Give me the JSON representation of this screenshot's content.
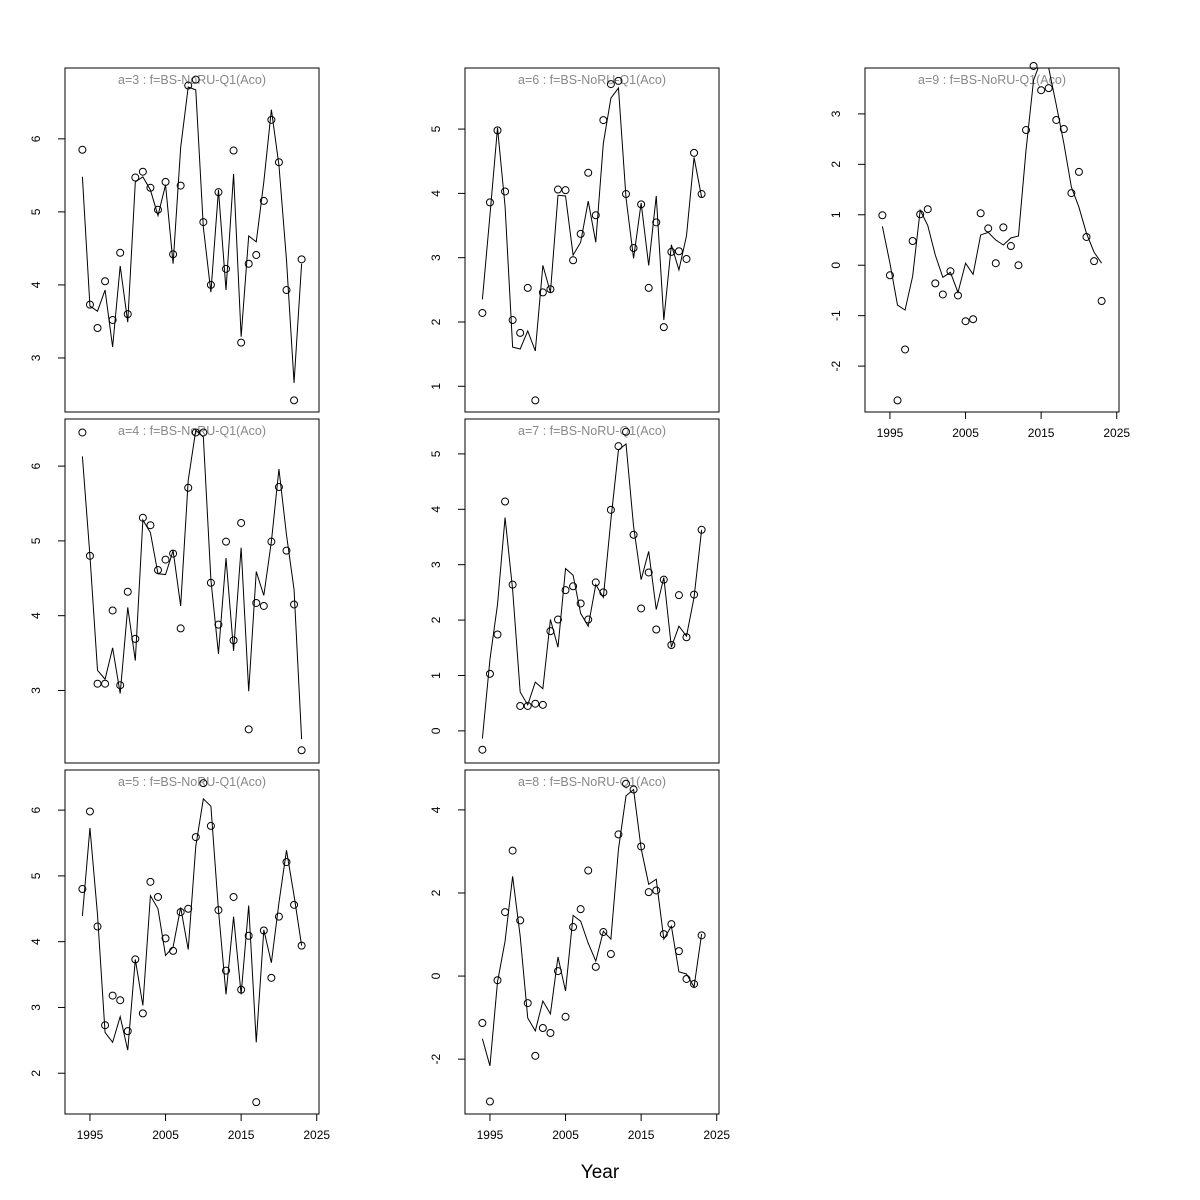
{
  "xlabel": "Year",
  "chart_data": [
    {
      "type": "line",
      "title": "a=3  :  f=BS-NoRU-Q1(Aco)",
      "x": [
        1994,
        1995,
        1996,
        1997,
        1998,
        1999,
        2000,
        2001,
        2002,
        2003,
        2004,
        2005,
        2006,
        2007,
        2008,
        2009,
        2010,
        2011,
        2012,
        2013,
        2014,
        2015,
        2016,
        2017,
        2018,
        2019,
        2020,
        2021,
        2022,
        2023
      ],
      "series": [
        {
          "marker": "circle",
          "values": [
            5.85,
            3.73,
            3.41,
            4.05,
            3.52,
            4.44,
            3.6,
            5.47,
            5.55,
            5.33,
            5.03,
            5.41,
            4.42,
            5.36,
            6.73,
            6.81,
            4.86,
            4.0,
            5.27,
            4.22,
            5.84,
            3.21,
            4.29,
            4.41,
            5.15,
            6.26,
            5.68,
            3.93,
            2.42,
            4.35
          ]
        },
        {
          "marker": "line",
          "values": [
            5.48,
            3.71,
            3.64,
            3.93,
            3.15,
            4.26,
            3.49,
            5.41,
            5.48,
            5.3,
            4.95,
            5.37,
            4.29,
            5.88,
            6.71,
            6.67,
            4.79,
            3.9,
            5.3,
            3.93,
            5.52,
            3.29,
            4.67,
            4.59,
            5.41,
            6.4,
            5.64,
            4.34,
            2.66,
            4.29
          ]
        }
      ],
      "xlim": [
        1991.7,
        2025.3
      ],
      "ylim": [
        2.26,
        6.97
      ],
      "yticks": [
        3,
        4,
        5,
        6
      ]
    },
    {
      "type": "line",
      "title": "a=4  :  f=BS-NoRU-Q1(Aco)",
      "x": [
        1994,
        1995,
        1996,
        1997,
        1998,
        1999,
        2000,
        2001,
        2002,
        2003,
        2004,
        2005,
        2006,
        2007,
        2008,
        2009,
        2010,
        2011,
        2012,
        2013,
        2014,
        2015,
        2016,
        2017,
        2018,
        2019,
        2020,
        2021,
        2022,
        2023
      ],
      "series": [
        {
          "marker": "circle",
          "values": [
            6.45,
            4.8,
            3.09,
            3.09,
            4.07,
            3.07,
            4.32,
            3.69,
            5.31,
            5.21,
            4.61,
            4.75,
            4.83,
            3.83,
            5.71,
            6.45,
            6.45,
            4.44,
            3.88,
            4.99,
            3.67,
            5.24,
            2.48,
            4.17,
            4.13,
            4.99,
            5.72,
            4.87,
            4.15,
            2.2
          ]
        },
        {
          "marker": "line",
          "values": [
            6.13,
            4.8,
            3.27,
            3.15,
            3.57,
            2.96,
            4.11,
            3.4,
            5.28,
            5.11,
            4.56,
            4.55,
            4.87,
            4.13,
            5.81,
            6.48,
            6.39,
            4.48,
            3.49,
            4.77,
            3.53,
            4.91,
            2.99,
            4.59,
            4.27,
            4.99,
            5.96,
            5.08,
            4.35,
            2.35
          ]
        }
      ],
      "xlim": [
        1991.7,
        2025.3
      ],
      "ylim": [
        2.03,
        6.63
      ],
      "yticks": [
        3,
        4,
        5,
        6
      ]
    },
    {
      "type": "line",
      "title": "a=5  :  f=BS-NoRU-Q1(Aco)",
      "x": [
        1994,
        1995,
        1996,
        1997,
        1998,
        1999,
        2000,
        2001,
        2002,
        2003,
        2004,
        2005,
        2006,
        2007,
        2008,
        2009,
        2010,
        2011,
        2012,
        2013,
        2014,
        2015,
        2016,
        2017,
        2018,
        2019,
        2020,
        2021,
        2022,
        2023
      ],
      "series": [
        {
          "marker": "circle",
          "values": [
            4.8,
            5.98,
            4.23,
            2.73,
            3.18,
            3.11,
            2.64,
            3.73,
            2.91,
            4.91,
            4.68,
            4.05,
            3.86,
            4.45,
            4.5,
            5.59,
            6.41,
            5.76,
            4.48,
            3.56,
            4.68,
            3.27,
            4.09,
            1.56,
            4.17,
            3.45,
            4.38,
            5.21,
            4.56,
            3.94
          ]
        },
        {
          "marker": "line",
          "values": [
            4.39,
            5.73,
            4.41,
            2.62,
            2.47,
            2.86,
            2.35,
            3.73,
            3.03,
            4.7,
            4.5,
            3.79,
            3.92,
            4.52,
            3.88,
            5.45,
            6.17,
            6.06,
            4.48,
            3.2,
            4.38,
            3.2,
            4.55,
            2.47,
            4.18,
            3.68,
            4.59,
            5.39,
            4.7,
            3.94
          ]
        }
      ],
      "xlim": [
        1991.7,
        2025.3
      ],
      "ylim": [
        1.38,
        6.61
      ],
      "yticks": [
        2,
        3,
        4,
        5,
        6
      ],
      "xticks": [
        1995,
        2005,
        2015,
        2025
      ]
    },
    {
      "type": "line",
      "title": "a=6  :  f=BS-NoRU-Q1(Aco)",
      "x": [
        1994,
        1995,
        1996,
        1997,
        1998,
        1999,
        2000,
        2001,
        2002,
        2003,
        2004,
        2005,
        2006,
        2007,
        2008,
        2009,
        2010,
        2011,
        2012,
        2013,
        2014,
        2015,
        2016,
        2017,
        2018,
        2019,
        2020,
        2021,
        2022,
        2023
      ],
      "series": [
        {
          "marker": "circle",
          "values": [
            2.14,
            3.86,
            4.98,
            4.03,
            2.03,
            1.83,
            2.53,
            0.78,
            2.46,
            2.51,
            4.06,
            4.05,
            2.96,
            3.37,
            4.32,
            3.66,
            5.14,
            5.7,
            5.75,
            3.99,
            3.15,
            3.83,
            2.53,
            3.55,
            1.92,
            3.09,
            3.1,
            2.98,
            4.63,
            3.99
          ]
        },
        {
          "marker": "line",
          "values": [
            2.35,
            3.66,
            5.02,
            3.8,
            1.61,
            1.58,
            1.86,
            1.55,
            2.88,
            2.46,
            3.97,
            3.96,
            3.04,
            3.24,
            3.88,
            3.24,
            4.78,
            5.48,
            5.64,
            3.93,
            2.99,
            3.85,
            2.88,
            3.96,
            2.03,
            3.2,
            2.81,
            3.34,
            4.56,
            3.94
          ]
        }
      ],
      "xlim": [
        1991.7,
        2025.3
      ],
      "ylim": [
        0.6,
        5.95
      ],
      "yticks": [
        1,
        2,
        3,
        4,
        5
      ]
    },
    {
      "type": "line",
      "title": "a=7  :  f=BS-NoRU-Q1(Aco)",
      "x": [
        1994,
        1995,
        1996,
        1997,
        1998,
        1999,
        2000,
        2001,
        2002,
        2003,
        2004,
        2005,
        2006,
        2007,
        2008,
        2009,
        2010,
        2011,
        2012,
        2013,
        2014,
        2015,
        2016,
        2017,
        2018,
        2019,
        2020,
        2021,
        2022,
        2023
      ],
      "series": [
        {
          "marker": "circle",
          "values": [
            -0.34,
            1.03,
            1.74,
            4.14,
            2.64,
            0.45,
            0.45,
            0.49,
            0.47,
            1.8,
            2.01,
            2.54,
            2.61,
            2.3,
            2.01,
            2.68,
            2.5,
            3.99,
            5.14,
            5.4,
            3.54,
            2.21,
            2.86,
            1.83,
            2.73,
            1.55,
            2.45,
            1.69,
            2.46,
            3.63
          ]
        },
        {
          "marker": "line",
          "values": [
            -0.14,
            1.29,
            2.28,
            3.85,
            2.55,
            0.7,
            0.47,
            0.88,
            0.76,
            2.01,
            1.51,
            2.93,
            2.81,
            2.12,
            1.89,
            2.64,
            2.41,
            3.81,
            5.07,
            5.18,
            3.69,
            2.73,
            3.24,
            2.19,
            2.77,
            1.51,
            1.89,
            1.71,
            2.41,
            3.63
          ]
        }
      ],
      "xlim": [
        1991.7,
        2025.3
      ],
      "ylim": [
        -0.58,
        5.63
      ],
      "yticks": [
        0,
        1,
        2,
        3,
        4,
        5
      ]
    },
    {
      "type": "line",
      "title": "a=8  :  f=BS-NoRU-Q1(Aco)",
      "x": [
        1994,
        1995,
        1996,
        1997,
        1998,
        1999,
        2000,
        2001,
        2002,
        2003,
        2004,
        2005,
        2006,
        2007,
        2008,
        2009,
        2010,
        2011,
        2012,
        2013,
        2014,
        2015,
        2016,
        2017,
        2018,
        2019,
        2020,
        2021,
        2022,
        2023
      ],
      "series": [
        {
          "marker": "circle",
          "values": [
            -1.13,
            -3.02,
            -0.1,
            1.54,
            3.02,
            1.34,
            -0.65,
            -1.92,
            -1.25,
            -1.37,
            0.12,
            -0.98,
            1.18,
            1.61,
            2.54,
            0.22,
            1.06,
            0.53,
            3.41,
            4.63,
            4.49,
            3.12,
            2.02,
            2.06,
            1.01,
            1.25,
            0.6,
            -0.07,
            -0.19,
            0.98
          ]
        },
        {
          "marker": "line",
          "values": [
            -1.51,
            -2.16,
            -0.14,
            0.84,
            2.4,
            0.96,
            -1.01,
            -1.32,
            -0.6,
            -0.91,
            0.46,
            -0.36,
            1.46,
            1.32,
            0.79,
            0.36,
            1.08,
            0.89,
            3.05,
            4.34,
            4.49,
            3.07,
            2.21,
            2.33,
            0.89,
            1.2,
            0.1,
            0.05,
            -0.26,
            1.01
          ]
        }
      ],
      "xlim": [
        1991.7,
        2025.3
      ],
      "ylim": [
        -3.32,
        4.96
      ],
      "yticks": [
        -2,
        0,
        2,
        4
      ],
      "xticks": [
        1995,
        2005,
        2015,
        2025
      ]
    },
    {
      "type": "line",
      "title": "a=9  :  f=BS-NoRU-Q1(Aco)",
      "x": [
        1994,
        1995,
        1996,
        1997,
        1998,
        1999,
        2000,
        2001,
        2002,
        2003,
        2004,
        2005,
        2006,
        2007,
        2008,
        2009,
        2010,
        2011,
        2012,
        2013,
        2014,
        2015,
        2016,
        2017,
        2018,
        2019,
        2020,
        2021,
        2022,
        2023
      ],
      "series": [
        {
          "marker": "circle",
          "values": [
            0.99,
            -0.2,
            -2.68,
            -1.67,
            0.48,
            1.01,
            1.11,
            -0.36,
            -0.58,
            -0.12,
            -0.6,
            -1.11,
            -1.07,
            1.03,
            0.73,
            0.04,
            0.75,
            0.38,
            0.0,
            2.68,
            3.95,
            3.47,
            3.51,
            2.88,
            2.7,
            1.43,
            1.85,
            0.56,
            0.08,
            -0.71
          ]
        },
        {
          "marker": "line",
          "values": [
            0.77,
            0.04,
            -0.79,
            -0.89,
            -0.22,
            1.09,
            0.79,
            0.2,
            -0.24,
            -0.14,
            -0.54,
            0.04,
            -0.18,
            0.6,
            0.65,
            0.5,
            0.4,
            0.54,
            0.58,
            2.28,
            3.67,
            4.07,
            3.91,
            3.18,
            2.42,
            1.55,
            1.15,
            0.63,
            0.26,
            0.04
          ]
        }
      ],
      "xlim": [
        1991.7,
        2025.3
      ],
      "ylim": [
        -2.91,
        3.91
      ],
      "yticks": [
        -2,
        -1,
        0,
        1,
        2,
        3
      ],
      "xticks": [
        1995,
        2005,
        2015,
        2025
      ]
    }
  ]
}
